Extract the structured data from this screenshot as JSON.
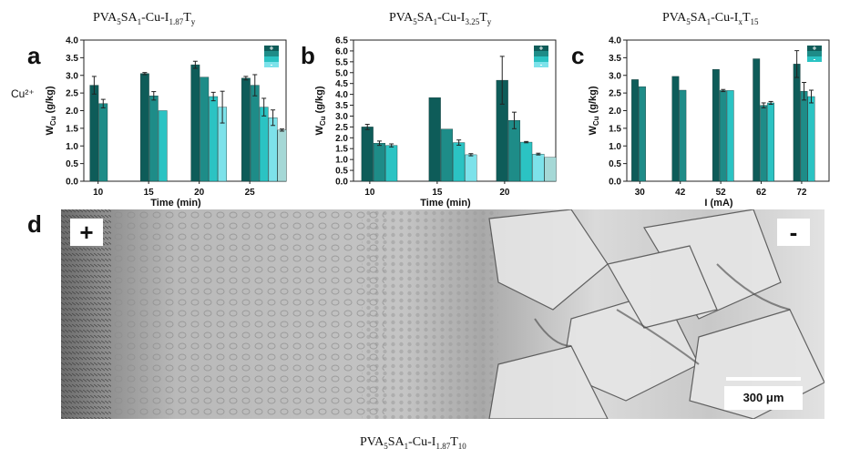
{
  "panel_titles": {
    "a": {
      "base": "PVA",
      "s1": "5",
      "mid": "SA",
      "s2": "1",
      "tail": "-Cu-I",
      "s3": "1.87",
      "t": "T",
      "s4": "y"
    },
    "b": {
      "base": "PVA",
      "s1": "5",
      "mid": "SA",
      "s2": "1",
      "tail": "-Cu-I",
      "s3": "3.25",
      "t": "T",
      "s4": "y"
    },
    "c": {
      "base": "PVA",
      "s1": "5",
      "mid": "SA",
      "s2": "1",
      "tail": "-Cu-I",
      "s3": "x",
      "t": "T",
      "s4": "15"
    },
    "d": {
      "base": "PVA",
      "s1": "5",
      "mid": "SA",
      "s2": "1",
      "tail": "-Cu-I",
      "s3": "1.87",
      "t": "T",
      "s4": "10"
    }
  },
  "letters": {
    "a": "a",
    "b": "b",
    "c": "c",
    "d": "d"
  },
  "side_label": "Cu²⁺",
  "sem": {
    "plus": "+",
    "minus": "-",
    "scale_label": "300 μm"
  },
  "colors": [
    "#0e5c59",
    "#1e8c88",
    "#2bc3c3",
    "#7de2ea",
    "#a5d8d6"
  ],
  "chart_data": [
    {
      "type": "bar",
      "ylabel": "W",
      "ylabel_sub": "Cu",
      "ylabel_unit": " (g/kg)",
      "xlabel": "Time (min)",
      "ylim": [
        0,
        4
      ],
      "yticks": [
        "0.0",
        "0.5",
        "1.0",
        "1.5",
        "2.0",
        "2.5",
        "3.0",
        "3.5",
        "4.0"
      ],
      "legend": [
        "+",
        "",
        "",
        "-"
      ],
      "groups": [
        {
          "category": "10",
          "values": [
            2.72,
            2.2
          ],
          "errors": [
            0.25,
            0.12
          ]
        },
        {
          "category": "15",
          "values": [
            3.05,
            2.42,
            2.0
          ],
          "errors": [
            0.03,
            0.12,
            0.0
          ]
        },
        {
          "category": "20",
          "values": [
            3.3,
            2.95,
            2.4,
            2.1
          ],
          "errors": [
            0.1,
            0.0,
            0.12,
            0.45
          ]
        },
        {
          "category": "25",
          "values": [
            2.92,
            2.72,
            2.1,
            1.8,
            1.45
          ],
          "errors": [
            0.05,
            0.3,
            0.25,
            0.22,
            0.03
          ]
        }
      ]
    },
    {
      "type": "bar",
      "ylabel": "W",
      "ylabel_sub": "Cu",
      "ylabel_unit": " (g/kg)",
      "xlabel": "Time (min)",
      "ylim": [
        0,
        6.5
      ],
      "yticks": [
        "0.0",
        "0.5",
        "1.0",
        "1.5",
        "2.0",
        "2.5",
        "3.0",
        "3.5",
        "4.0",
        "4.5",
        "5.0",
        "5.5",
        "6.0",
        "6.5"
      ],
      "legend": [
        "+",
        "",
        "",
        "-"
      ],
      "groups": [
        {
          "category": "10",
          "values": [
            2.5,
            1.75,
            1.65
          ],
          "errors": [
            0.12,
            0.1,
            0.07
          ]
        },
        {
          "category": "15",
          "values": [
            3.85,
            2.4,
            1.78,
            1.22
          ],
          "errors": [
            0.0,
            0.0,
            0.12,
            0.05
          ]
        },
        {
          "category": "20",
          "values": [
            4.65,
            2.8,
            1.8,
            1.25,
            1.1
          ],
          "errors": [
            1.1,
            0.38,
            0.03,
            0.04,
            0.0
          ]
        }
      ]
    },
    {
      "type": "bar",
      "ylabel": "W",
      "ylabel_sub": "Cu",
      "ylabel_unit": " (g/kg)",
      "xlabel": "I (mA)",
      "ylim": [
        0,
        4
      ],
      "yticks": [
        "0.0",
        "0.5",
        "1.0",
        "1.5",
        "2.0",
        "2.5",
        "3.0",
        "3.5",
        "4.0"
      ],
      "legend": [
        "+",
        "",
        "-"
      ],
      "groups": [
        {
          "category": "30",
          "values": [
            2.88,
            2.68
          ],
          "errors": [
            0.0,
            0.0
          ]
        },
        {
          "category": "42",
          "values": [
            2.97,
            2.58
          ],
          "errors": [
            0.0,
            0.0
          ]
        },
        {
          "category": "52",
          "values": [
            3.17,
            2.57,
            2.57
          ],
          "errors": [
            0.0,
            0.03,
            0.0
          ]
        },
        {
          "category": "62",
          "values": [
            3.47,
            2.15,
            2.22
          ],
          "errors": [
            0.0,
            0.07,
            0.04
          ]
        },
        {
          "category": "72",
          "values": [
            3.32,
            2.55,
            2.4
          ],
          "errors": [
            0.38,
            0.25,
            0.18
          ]
        }
      ]
    }
  ]
}
